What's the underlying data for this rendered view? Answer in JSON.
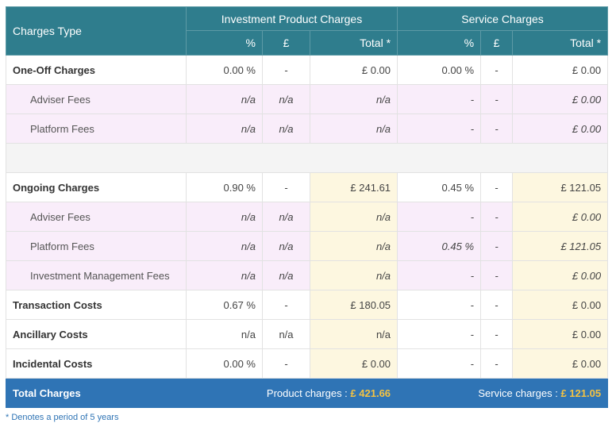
{
  "header": {
    "charges_type": "Charges Type",
    "groups": [
      "Investment Product Charges",
      "Service Charges"
    ],
    "subheaders": [
      "%",
      "£",
      "Total *",
      "%",
      "£",
      "Total *"
    ]
  },
  "table": {
    "rows": [
      {
        "label": "One-Off Charges",
        "cells": [
          "0.00 %",
          "-",
          "£ 0.00",
          "0.00 %",
          "-",
          "£ 0.00"
        ]
      },
      {
        "label": "Adviser Fees",
        "cells": [
          "n/a",
          "n/a",
          "n/a",
          "-",
          "-",
          "£ 0.00"
        ]
      },
      {
        "label": "Platform Fees",
        "cells": [
          "n/a",
          "n/a",
          "n/a",
          "-",
          "-",
          "£ 0.00"
        ]
      },
      {
        "label": "Ongoing Charges",
        "cells": [
          "0.90 %",
          "-",
          "£ 241.61",
          "0.45 %",
          "-",
          "£ 121.05"
        ]
      },
      {
        "label": "Adviser Fees",
        "cells": [
          "n/a",
          "n/a",
          "n/a",
          "-",
          "-",
          "£ 0.00"
        ]
      },
      {
        "label": "Platform Fees",
        "cells": [
          "n/a",
          "n/a",
          "n/a",
          "0.45 %",
          "-",
          "£ 121.05"
        ]
      },
      {
        "label": "Investment Management Fees",
        "cells": [
          "n/a",
          "n/a",
          "n/a",
          "-",
          "-",
          "£ 0.00"
        ]
      },
      {
        "label": "Transaction Costs",
        "cells": [
          "0.67 %",
          "-",
          "£ 180.05",
          "-",
          "-",
          "£ 0.00"
        ]
      },
      {
        "label": "Ancillary Costs",
        "cells": [
          "n/a",
          "n/a",
          "n/a",
          "-",
          "-",
          "£ 0.00"
        ]
      },
      {
        "label": "Incidental Costs",
        "cells": [
          "0.00 %",
          "-",
          "£ 0.00",
          "-",
          "-",
          "£ 0.00"
        ]
      }
    ]
  },
  "totals": {
    "label": "Total Charges",
    "product_label": "Product charges :",
    "product_value": "£ 421.66",
    "service_label": "Service charges :",
    "service_value": "£ 121.05"
  },
  "footnote": "* Denotes a period of 5 years"
}
